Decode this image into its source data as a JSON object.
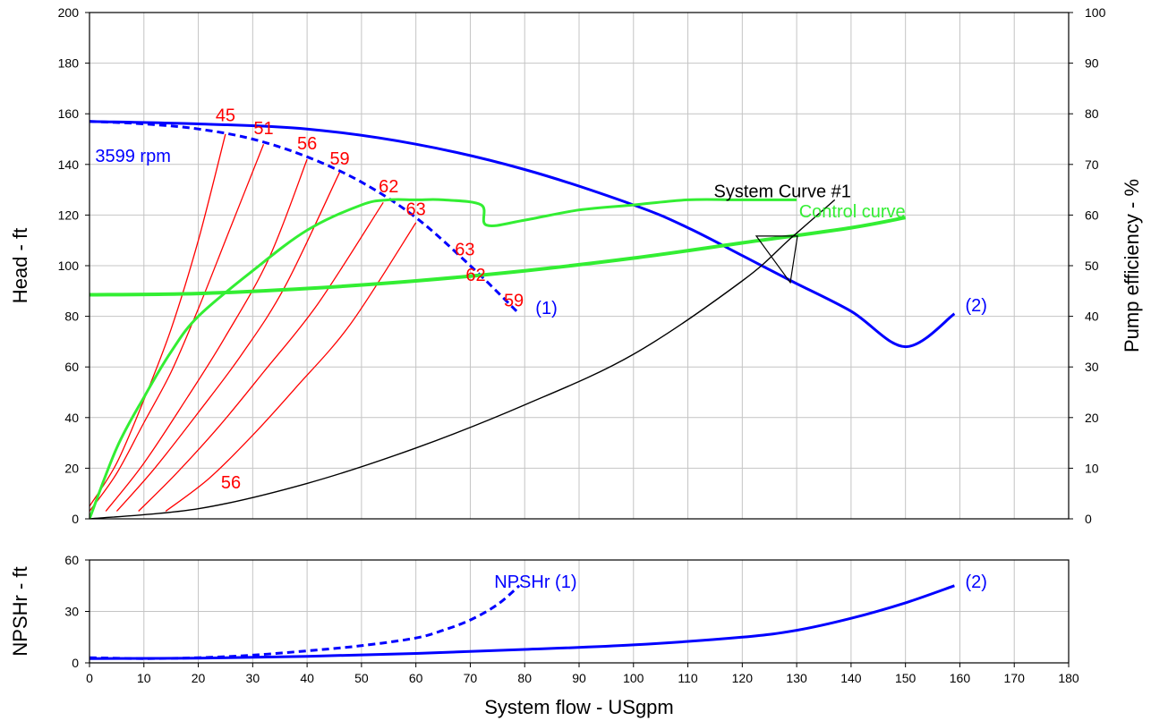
{
  "chart_data": [
    {
      "type": "line",
      "panel": "main",
      "ylabel_left": "Head - ft",
      "ylabel_right": "Pump efficiency - %",
      "xlim": [
        0,
        180
      ],
      "ylim_left": [
        0,
        200
      ],
      "ylim_right": [
        0,
        100
      ],
      "xticks": [
        0,
        10,
        20,
        30,
        40,
        50,
        60,
        70,
        80,
        90,
        100,
        110,
        120,
        130,
        140,
        150,
        160,
        170,
        180
      ],
      "yticks_left": [
        0,
        20,
        40,
        60,
        80,
        100,
        120,
        140,
        160,
        180,
        200
      ],
      "yticks_right": [
        0,
        10,
        20,
        30,
        40,
        50,
        60,
        70,
        80,
        90,
        100
      ],
      "grid": true,
      "series": [
        {
          "name": "(2)",
          "kind": "pump curve",
          "color": "#0000ff",
          "style": "solid",
          "x": [
            0,
            20,
            40,
            60,
            80,
            100,
            110,
            120,
            129,
            140,
            150,
            159
          ],
          "y": [
            157,
            156,
            154,
            148,
            138,
            124,
            115,
            104,
            94,
            82,
            68,
            81
          ]
        },
        {
          "name": "(1)",
          "kind": "pump curve",
          "color": "#0000ff",
          "style": "dashed",
          "x": [
            0,
            10,
            20,
            30,
            40,
            50,
            60,
            70,
            79
          ],
          "y": [
            157,
            156,
            154,
            150,
            143,
            133,
            119,
            100,
            81
          ]
        },
        {
          "name": "Control curve",
          "kind": "control curve",
          "color": "#33ee33",
          "style": "solid",
          "x": [
            0,
            20,
            40,
            60,
            80,
            100,
            120,
            140,
            150
          ],
          "y": [
            88.5,
            89,
            91,
            94,
            98,
            103,
            109,
            115,
            119
          ]
        },
        {
          "name": "System Curve #1",
          "kind": "system curve",
          "color": "#000000",
          "style": "solid",
          "x": [
            0,
            20,
            40,
            60,
            80,
            100,
            120,
            129,
            137
          ],
          "y": [
            0,
            4,
            14,
            28,
            45,
            65,
            94,
            111,
            126
          ]
        },
        {
          "name": "Efficiency",
          "kind": "efficiency",
          "axis": "right",
          "color": "#33ee33",
          "style": "solid",
          "x": [
            0,
            5,
            10,
            15,
            20,
            30,
            40,
            50,
            55,
            60,
            65,
            72,
            73,
            80,
            90,
            100,
            110,
            120,
            130
          ],
          "y": [
            0,
            14,
            24,
            33,
            40,
            49,
            57,
            62,
            63,
            63,
            63,
            62,
            58,
            59,
            61,
            62,
            63,
            63,
            63
          ]
        }
      ],
      "efficiency_contours": [
        {
          "label": "45",
          "x": [
            0,
            5,
            10,
            15,
            20,
            25
          ],
          "y": [
            5,
            22,
            47,
            75,
            110,
            152
          ]
        },
        {
          "label": "51",
          "x": [
            0,
            5,
            10,
            15,
            20,
            25,
            32
          ],
          "y": [
            3,
            18,
            38,
            58,
            83,
            110,
            148
          ]
        },
        {
          "label": "56",
          "x": [
            3,
            10,
            18,
            25,
            33,
            40
          ],
          "y": [
            3,
            22,
            48,
            72,
            103,
            142
          ]
        },
        {
          "label": "59",
          "x": [
            5,
            12,
            20,
            28,
            36,
            46
          ],
          "y": [
            3,
            20,
            42,
            65,
            92,
            137
          ]
        },
        {
          "label": "62",
          "x": [
            9,
            16,
            24,
            32,
            42,
            54
          ],
          "y": [
            3,
            18,
            37,
            58,
            85,
            125
          ]
        },
        {
          "label": "63",
          "x": [
            14,
            22,
            30,
            38,
            48,
            60
          ],
          "y": [
            3,
            16,
            33,
            52,
            77,
            117
          ]
        }
      ],
      "annotations": [
        {
          "text": "45",
          "x": 25,
          "y": 157,
          "color": "#ff0000"
        },
        {
          "text": "51",
          "x": 32,
          "y": 152,
          "color": "#ff0000"
        },
        {
          "text": "56",
          "x": 40,
          "y": 146,
          "color": "#ff0000"
        },
        {
          "text": "59",
          "x": 46,
          "y": 140,
          "color": "#ff0000"
        },
        {
          "text": "62",
          "x": 55,
          "y": 129,
          "color": "#ff0000"
        },
        {
          "text": "63",
          "x": 60,
          "y": 120,
          "color": "#ff0000"
        },
        {
          "text": "63",
          "x": 69,
          "y": 104,
          "color": "#ff0000"
        },
        {
          "text": "62",
          "x": 71,
          "y": 94,
          "color": "#ff0000"
        },
        {
          "text": "59",
          "x": 78,
          "y": 84,
          "color": "#ff0000"
        },
        {
          "text": "56",
          "x": 26,
          "y": 12,
          "color": "#ff0000"
        },
        {
          "text": "3599 rpm",
          "x": 8,
          "y": 141,
          "color": "#0000ff"
        },
        {
          "text": "(1)",
          "x": 84,
          "y": 81,
          "color": "#0000ff"
        },
        {
          "text": "(2)",
          "x": 163,
          "y": 82,
          "color": "#0000ff"
        },
        {
          "text": "System Curve #1",
          "x": 140,
          "y": 127,
          "color": "#000000"
        },
        {
          "text": "Control curve",
          "x": 150,
          "y": 119,
          "color": "#33ee33"
        }
      ]
    },
    {
      "type": "line",
      "panel": "npsh",
      "ylabel": "NPSHr - ft",
      "xlabel": "System flow - USgpm",
      "xlim": [
        0,
        180
      ],
      "ylim": [
        0,
        60
      ],
      "xticks": [
        0,
        10,
        20,
        30,
        40,
        50,
        60,
        70,
        80,
        90,
        100,
        110,
        120,
        130,
        140,
        150,
        160,
        170,
        180
      ],
      "yticks": [
        0,
        30,
        60
      ],
      "grid": true,
      "series": [
        {
          "name": "NPSHr (1)",
          "color": "#0000ff",
          "style": "dashed",
          "x": [
            0,
            10,
            20,
            30,
            40,
            50,
            60,
            65,
            70,
            75,
            79
          ],
          "y": [
            3,
            2.5,
            3,
            4.5,
            7,
            10,
            14.5,
            19,
            25,
            34,
            45
          ]
        },
        {
          "name": "(2)",
          "color": "#0000ff",
          "style": "solid",
          "x": [
            0,
            20,
            40,
            60,
            80,
            100,
            120,
            130,
            140,
            150,
            159
          ],
          "y": [
            2.5,
            2.7,
            3.8,
            5.5,
            7.8,
            10.5,
            15,
            19,
            26,
            35,
            45
          ]
        }
      ],
      "annotations": [
        {
          "text": "NPSHr (1)",
          "x": 82,
          "y": 45,
          "color": "#0000ff"
        },
        {
          "text": "(2)",
          "x": 163,
          "y": 45,
          "color": "#0000ff"
        }
      ]
    }
  ]
}
